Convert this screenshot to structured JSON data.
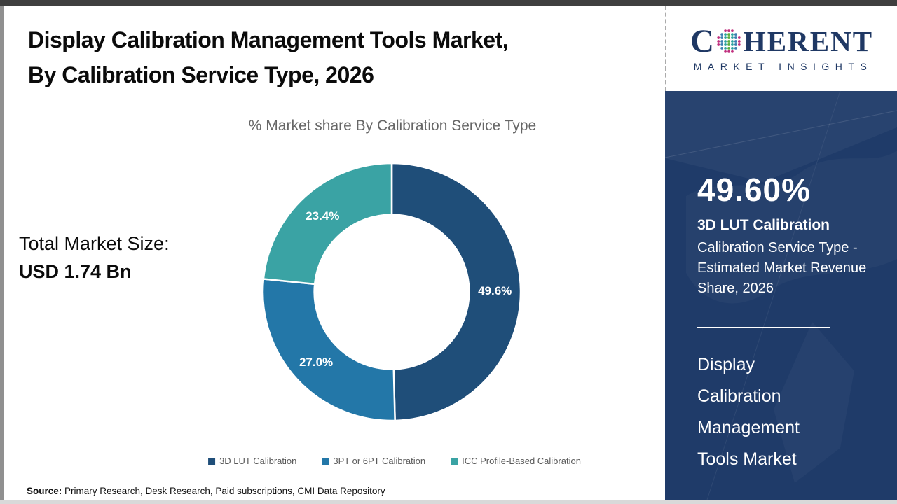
{
  "header": {
    "title_line1": "Display Calibration Management Tools Market,",
    "title_line2": "By Calibration Service Type, 2026",
    "subtitle": "% Market share By Calibration Service Type"
  },
  "left_panel": {
    "total_market_label": "Total Market Size:",
    "total_market_value": "USD 1.74 Bn"
  },
  "chart_data": {
    "type": "pie",
    "subtype": "donut",
    "title": "% Market share By Calibration Service Type",
    "labels": [
      "3D LUT Calibration",
      "3PT or 6PT Calibration",
      "ICC Profile-Based Calibration"
    ],
    "values": [
      49.6,
      27.0,
      23.4
    ],
    "value_labels": [
      "49.6%",
      "27.0%",
      "23.4%"
    ],
    "colors": [
      "#1f4e79",
      "#2377a8",
      "#3aa3a4"
    ],
    "donut_hole_ratio": 0.6,
    "start_angle_deg": 0,
    "direction": "clockwise",
    "legend_position": "bottom",
    "slice_label_color": "#ffffff"
  },
  "sidebar": {
    "stat_value": "49.60%",
    "stat_name": "3D LUT Calibration",
    "stat_desc": "Calibration Service Type - Estimated Market Revenue Share, 2026",
    "market_name_lines": [
      "Display",
      "Calibration",
      "Management",
      "Tools Market"
    ],
    "background_color": "#1f3b69"
  },
  "logo": {
    "brand_first_letter": "C",
    "brand_rest": "HERENT",
    "brand_sub": "MARKET INSIGHTS",
    "brand_color": "#1f3864",
    "globe_colors": {
      "outer": "#c0307e",
      "center": "#5bae3f",
      "inner": "#2fa3a0",
      "mid": "#3c7fb1"
    }
  },
  "footer": {
    "source_label": "Source:",
    "source_text": " Primary Research, Desk Research, Paid subscriptions, CMI Data Repository"
  }
}
